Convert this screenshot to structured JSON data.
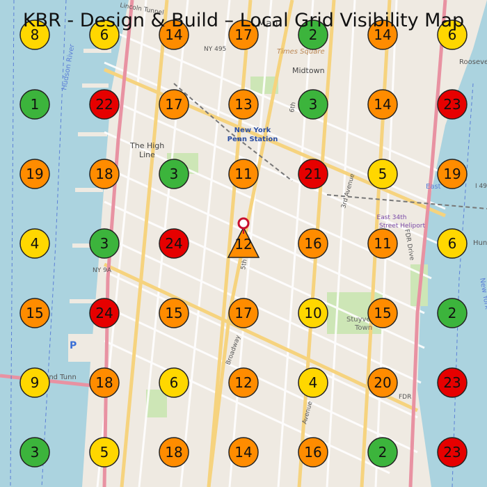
{
  "title": "KBR - Design & Build – Local Grid Visibility Map",
  "colors": {
    "water": "#abd3df",
    "land": "#f0ebe4",
    "park": "#cde6b6",
    "road_major": "#f7d98a",
    "road_minor": "#ffffff",
    "rail": "#6b6b6b",
    "green": "#3cb43c",
    "yellow": "#ffd700",
    "orange": "#ff8c00",
    "red": "#e60000",
    "marker_orange": "#ff8c00",
    "pin": "#c8102e"
  },
  "grid": {
    "rows": [
      [
        8,
        6,
        14,
        17,
        2,
        14,
        6
      ],
      [
        1,
        22,
        17,
        13,
        3,
        14,
        23
      ],
      [
        19,
        18,
        3,
        11,
        21,
        5,
        19
      ],
      [
        4,
        3,
        24,
        12,
        16,
        11,
        6
      ],
      [
        15,
        24,
        15,
        17,
        10,
        15,
        2
      ],
      [
        9,
        18,
        6,
        12,
        4,
        20,
        23
      ],
      [
        3,
        5,
        18,
        14,
        16,
        2,
        23
      ]
    ],
    "thresholds": {
      "green_max": 3,
      "yellow_max": 10,
      "orange_max": 20
    }
  },
  "map_labels": [
    {
      "id": "penn",
      "text": "New York\nPenn Station"
    },
    {
      "id": "midtown",
      "text": "Midtown"
    },
    {
      "id": "times-square",
      "text": "Times Square"
    },
    {
      "id": "manhattan",
      "text": "Man"
    },
    {
      "id": "high-line",
      "text": "The High\nLine"
    },
    {
      "id": "ny495",
      "text": "NY 495"
    },
    {
      "id": "ny9a",
      "text": "NY 9A"
    },
    {
      "id": "holland",
      "text": "Holland Tunn"
    },
    {
      "id": "heliport",
      "text": "East 34th\nStreet Heliport"
    },
    {
      "id": "fdr",
      "text": "FDR"
    },
    {
      "id": "fdr-drive",
      "text": "FDR Drive"
    },
    {
      "id": "broadway",
      "text": "Broadway"
    },
    {
      "id": "third-ave",
      "text": "3rd Avenue"
    },
    {
      "id": "avenue",
      "text": "Avenue"
    },
    {
      "id": "stuyvesant",
      "text": "Stuyve\nTown"
    },
    {
      "id": "hudson",
      "text": "Hudson River"
    },
    {
      "id": "east-river",
      "text": "East"
    },
    {
      "id": "roosevelt",
      "text": "Roosevelt"
    },
    {
      "id": "i495",
      "text": "I 49"
    },
    {
      "id": "hun",
      "text": "Hun"
    },
    {
      "id": "new-york",
      "text": "New York"
    },
    {
      "id": "lincoln",
      "text": "Lincoln Tunnel"
    },
    {
      "id": "fifth-ave",
      "text": "5th Ave"
    },
    {
      "id": "sixth",
      "text": "6th"
    },
    {
      "id": "p-parking",
      "text": "P"
    }
  ]
}
